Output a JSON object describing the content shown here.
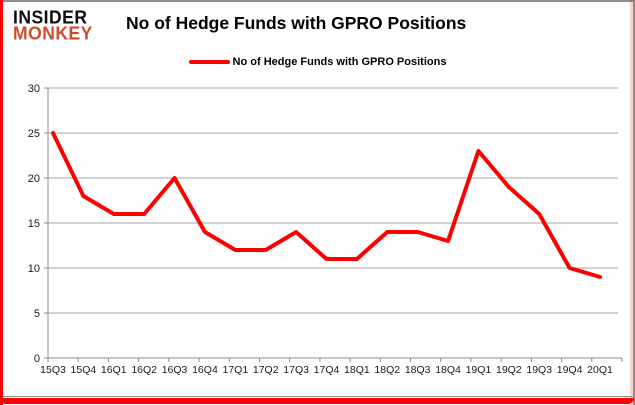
{
  "logo": {
    "line1": "INSIDER",
    "line2": "MONKEY",
    "line1_color": "#0d0d0d",
    "line2_color": "#d04a2c"
  },
  "header": {
    "title": "No of Hedge Funds with GPRO Positions"
  },
  "legend": {
    "label": "No of Hedge Funds with GPRO Positions",
    "line_color": "#ff0000"
  },
  "colors": {
    "series": "#ff0000",
    "gridline": "#a6a6a6",
    "axis": "#8c8c8c",
    "tick_label": "#1a1a1a",
    "border_red": "#fe0000",
    "border_gray": "#8e8e8e",
    "background": "#ffffff"
  },
  "chart_data": {
    "type": "line",
    "title": "No of Hedge Funds with GPRO Positions",
    "categories": [
      "15Q3",
      "15Q4",
      "16Q1",
      "16Q2",
      "16Q3",
      "16Q4",
      "17Q1",
      "17Q2",
      "17Q3",
      "17Q4",
      "18Q1",
      "18Q2",
      "18Q3",
      "18Q4",
      "19Q1",
      "19Q2",
      "19Q3",
      "19Q4",
      "20Q1"
    ],
    "values": [
      25,
      18,
      16,
      16,
      20,
      14,
      12,
      12,
      14,
      11,
      11,
      14,
      14,
      13,
      23,
      19,
      16,
      10,
      9
    ],
    "series_name": "No of Hedge Funds with GPRO Positions",
    "xlabel": "",
    "ylabel": "",
    "ylim": [
      0,
      30
    ],
    "yticks": [
      0,
      5,
      10,
      15,
      20,
      25,
      30
    ],
    "grid": true,
    "legend_position": "top-center",
    "line_width": 4
  }
}
